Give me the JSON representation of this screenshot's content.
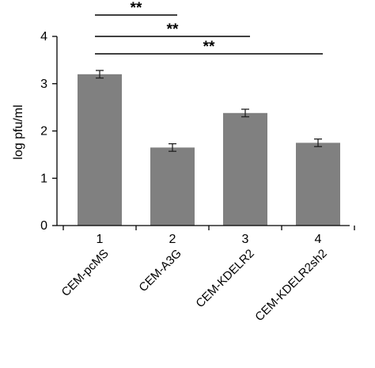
{
  "colors": {
    "bar": "#808080",
    "axis": "#000000"
  },
  "chart_data": {
    "type": "bar",
    "ylabel": "log pfu/ml",
    "ylim": [
      0,
      4
    ],
    "yticks": [
      0,
      1,
      2,
      3,
      4
    ],
    "x_tick_labels": [
      "1",
      "2",
      "3",
      "4"
    ],
    "categories": [
      "CEM-pcMS",
      "CEM-A3G",
      "CEM-KDELR2",
      "CEM-KDELR2sh2"
    ],
    "values": [
      3.2,
      1.65,
      2.38,
      1.75
    ],
    "errors": [
      0.08,
      0.08,
      0.08,
      0.08
    ],
    "significance": [
      {
        "from": 0,
        "to": 1,
        "label": "**"
      },
      {
        "from": 0,
        "to": 2,
        "label": "**"
      },
      {
        "from": 0,
        "to": 3,
        "label": "**"
      }
    ]
  }
}
